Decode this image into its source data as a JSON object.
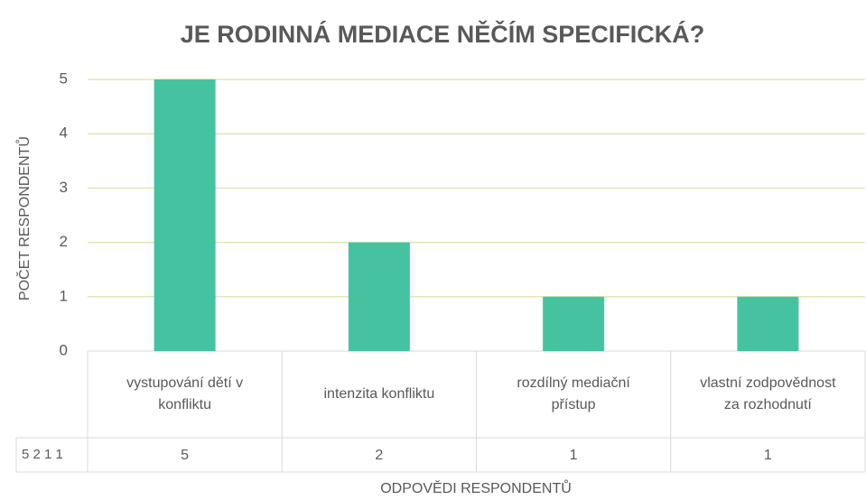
{
  "chart_data": {
    "type": "bar",
    "title": "JE RODINNÁ MEDIACE NĚČÍM SPECIFICKÁ?",
    "y_label": "POČET RESPONDENTŮ",
    "x_label": "ODPOVĚDI RESPONDENTŮ",
    "categories": [
      "vystupování dětí v konfliktu",
      "intenzita konfliktu",
      "rozdílný mediační přístup",
      "vlastní zodpovědnost za rozhodnutí"
    ],
    "series": [
      {
        "name": "5 2 1 1",
        "color": "#45c3a1",
        "values": [
          5,
          2,
          1,
          1
        ]
      }
    ],
    "ylim": [
      0,
      5
    ],
    "yticks": [
      0,
      1,
      2,
      3,
      4,
      5
    ],
    "grid": true,
    "grid_color": "#dbe9b8",
    "data_table": true
  }
}
